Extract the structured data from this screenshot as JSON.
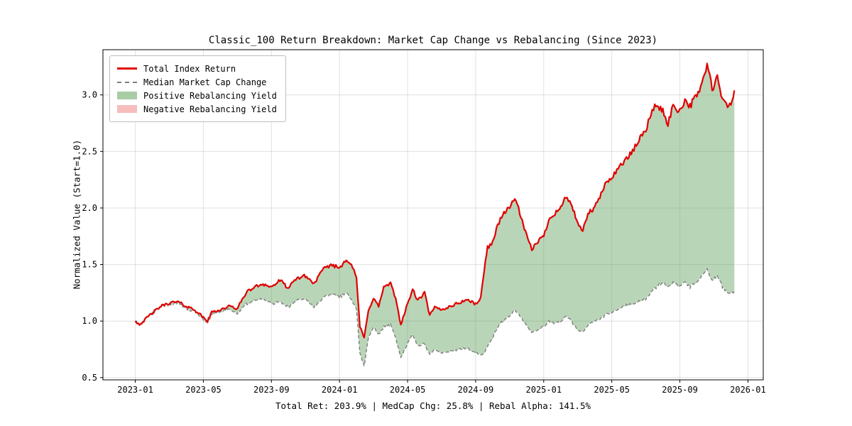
{
  "figure": {
    "title": "Classic_100 Return Breakdown: Market Cap Change vs Rebalancing (Since 2023)",
    "ylabel": "Normalized Value (Start=1.0)",
    "caption": "Total Ret: 203.9% | MedCap Chg: 25.8% | Rebal Alpha: 141.5%"
  },
  "legend": {
    "items": [
      {
        "label": "Total Index Return",
        "type": "solid-line",
        "color": "#e00000"
      },
      {
        "label": "Median Market Cap Change",
        "type": "dashed-line",
        "color": "#7f7f7f"
      },
      {
        "label": "Positive Rebalancing Yield",
        "type": "patch",
        "color": "#a8cda5"
      },
      {
        "label": "Negative Rebalancing Yield",
        "type": "patch",
        "color": "#f6bdbd"
      }
    ]
  },
  "chart_data": {
    "type": "line",
    "title": "Classic_100 Return Breakdown: Market Cap Change vs Rebalancing (Since 2023)",
    "xlabel": "",
    "ylabel": "Normalized Value (Start=1.0)",
    "x_unit": "months_since_2023-01",
    "xlim": [
      -1.9,
      36.9
    ],
    "ylim": [
      0.48,
      3.4
    ],
    "grid": true,
    "legend_position": "upper-left",
    "x_ticks": [
      {
        "pos": 0,
        "label": "2023-01"
      },
      {
        "pos": 4,
        "label": "2023-05"
      },
      {
        "pos": 8,
        "label": "2023-09"
      },
      {
        "pos": 12,
        "label": "2024-01"
      },
      {
        "pos": 16,
        "label": "2024-05"
      },
      {
        "pos": 20,
        "label": "2024-09"
      },
      {
        "pos": 24,
        "label": "2025-01"
      },
      {
        "pos": 28,
        "label": "2025-05"
      },
      {
        "pos": 32,
        "label": "2025-09"
      },
      {
        "pos": 36,
        "label": "2026-01"
      }
    ],
    "y_ticks": [
      {
        "pos": 0.5,
        "label": "0.5"
      },
      {
        "pos": 1.0,
        "label": "1.0"
      },
      {
        "pos": 1.5,
        "label": "1.5"
      },
      {
        "pos": 2.0,
        "label": "2.0"
      },
      {
        "pos": 2.5,
        "label": "2.5"
      },
      {
        "pos": 3.0,
        "label": "3.0"
      }
    ],
    "x": [
      0,
      0.25,
      0.5,
      0.75,
      1,
      1.25,
      1.5,
      2,
      2.5,
      3,
      3.5,
      4,
      4.25,
      4.5,
      5,
      5.5,
      6,
      6.5,
      7,
      7.5,
      8,
      8.5,
      9,
      9.5,
      10,
      10.5,
      11,
      11.5,
      12,
      12.4,
      12.7,
      13,
      13.2,
      13.45,
      13.7,
      14,
      14.3,
      14.6,
      15,
      15.3,
      15.6,
      16,
      16.3,
      16.6,
      17,
      17.3,
      17.6,
      18,
      18.5,
      19,
      19.5,
      20,
      20.3,
      20.5,
      20.7,
      21,
      21.3,
      21.6,
      22,
      22.3,
      22.6,
      23,
      23.3,
      23.6,
      24,
      24.3,
      24.6,
      25,
      25.3,
      25.6,
      26,
      26.3,
      26.6,
      27,
      27.3,
      27.6,
      28,
      28.3,
      28.6,
      29,
      29.3,
      29.6,
      30,
      30.3,
      30.6,
      31,
      31.3,
      31.6,
      32,
      32.3,
      32.6,
      33,
      33.3,
      33.6,
      33.9,
      34.2,
      34.5,
      34.8,
      35,
      35.2
    ],
    "series": [
      {
        "name": "Total Index Return",
        "color": "#e00000",
        "style": "solid",
        "values": [
          1.0,
          0.97,
          1.0,
          1.04,
          1.07,
          1.1,
          1.13,
          1.16,
          1.17,
          1.13,
          1.1,
          1.03,
          1.0,
          1.08,
          1.1,
          1.13,
          1.11,
          1.25,
          1.3,
          1.33,
          1.3,
          1.36,
          1.29,
          1.38,
          1.4,
          1.33,
          1.45,
          1.5,
          1.47,
          1.55,
          1.5,
          1.38,
          0.95,
          0.85,
          1.1,
          1.2,
          1.13,
          1.3,
          1.33,
          1.2,
          0.97,
          1.15,
          1.28,
          1.18,
          1.25,
          1.05,
          1.12,
          1.1,
          1.13,
          1.16,
          1.19,
          1.15,
          1.2,
          1.45,
          1.65,
          1.7,
          1.85,
          1.95,
          2.0,
          2.1,
          1.95,
          1.75,
          1.63,
          1.7,
          1.75,
          1.9,
          1.95,
          2.0,
          2.1,
          2.05,
          1.85,
          1.8,
          1.95,
          2.0,
          2.1,
          2.2,
          2.28,
          2.33,
          2.4,
          2.45,
          2.52,
          2.6,
          2.7,
          2.82,
          2.92,
          2.85,
          2.75,
          2.9,
          2.86,
          2.96,
          2.9,
          3.0,
          3.1,
          3.27,
          3.05,
          3.15,
          2.95,
          2.9,
          2.92,
          3.04
        ]
      },
      {
        "name": "Median Market Cap Change",
        "color": "#7f7f7f",
        "style": "dashed",
        "values": [
          1.0,
          0.97,
          1.0,
          1.04,
          1.07,
          1.1,
          1.13,
          1.15,
          1.16,
          1.11,
          1.08,
          1.01,
          0.99,
          1.06,
          1.08,
          1.1,
          1.07,
          1.15,
          1.18,
          1.2,
          1.15,
          1.18,
          1.12,
          1.18,
          1.2,
          1.12,
          1.2,
          1.24,
          1.21,
          1.25,
          1.2,
          1.1,
          0.72,
          0.6,
          0.85,
          0.95,
          0.88,
          0.95,
          0.97,
          0.85,
          0.68,
          0.8,
          0.88,
          0.78,
          0.8,
          0.7,
          0.75,
          0.72,
          0.73,
          0.75,
          0.76,
          0.72,
          0.7,
          0.72,
          0.78,
          0.85,
          0.95,
          1.0,
          1.05,
          1.1,
          1.05,
          0.95,
          0.9,
          0.92,
          0.95,
          1.0,
          0.98,
          1.0,
          1.05,
          1.0,
          0.92,
          0.9,
          0.97,
          1.0,
          1.02,
          1.05,
          1.08,
          1.1,
          1.12,
          1.15,
          1.15,
          1.18,
          1.2,
          1.25,
          1.3,
          1.35,
          1.3,
          1.35,
          1.3,
          1.35,
          1.3,
          1.35,
          1.4,
          1.45,
          1.35,
          1.4,
          1.3,
          1.26,
          1.24,
          1.26
        ]
      }
    ],
    "fills": [
      {
        "name": "Positive Rebalancing Yield",
        "between": [
          "Total Index Return",
          "Median Market Cap Change"
        ],
        "when": "above",
        "color": "rgba(80,150,75,0.40)"
      },
      {
        "name": "Negative Rebalancing Yield",
        "between": [
          "Total Index Return",
          "Median Market Cap Change"
        ],
        "when": "below",
        "color": "rgba(235,80,80,0.35)"
      }
    ],
    "stats": {
      "total_return_pct": 203.9,
      "medcap_change_pct": 25.8,
      "rebal_alpha_pct": 141.5
    }
  }
}
